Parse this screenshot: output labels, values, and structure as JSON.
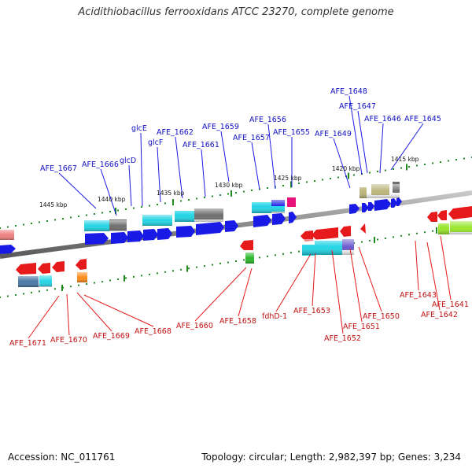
{
  "title": "Acidithiobacillus ferrooxidans ATCC 23270, complete genome",
  "footer": {
    "accession": "Accession: NC_011761",
    "summary": "Topology: circular; Length: 2,982,397 bp; Genes: 3,234"
  },
  "kbp_labels": [
    "1445 kbp",
    "1440 kbp",
    "1435 kbp",
    "1430 kbp",
    "1425 kbp",
    "1420 kbp",
    "1415 kbp"
  ],
  "top_labels": [
    "AFE_1667",
    "AFE_1666",
    "glcD",
    "glcE",
    "glcF",
    "AFE_1662",
    "AFE_1661",
    "AFE_1659",
    "AFE_1657",
    "AFE_1656",
    "AFE_1655",
    "AFE_1649",
    "AFE_1648",
    "AFE_1647",
    "AFE_1646",
    "AFE_1645"
  ],
  "bottom_labels": [
    "AFE_1671",
    "AFE_1670",
    "AFE_1669",
    "AFE_1668",
    "AFE_1660",
    "AFE_1658",
    "fdhD-1",
    "AFE_1653",
    "AFE_1652",
    "AFE_1651",
    "AFE_1650",
    "AFE_1643",
    "AFE_1642",
    "AFE_1641"
  ],
  "colors": {
    "forward_strand": "#1a1ae6",
    "reverse_strand": "#e61a1a",
    "backbone": "#808080",
    "tick": "#1f8a1f",
    "cyan": "#22d5e6",
    "grey": "#6e6e6e",
    "khaki": "#bcb57a",
    "magenta": "#e6147a",
    "lime": "#99e62a",
    "orange": "#ff8c1a",
    "pink": "#f08080",
    "purple": "#6a5acd",
    "steel": "#4a78a8",
    "green": "#2ab82a"
  }
}
